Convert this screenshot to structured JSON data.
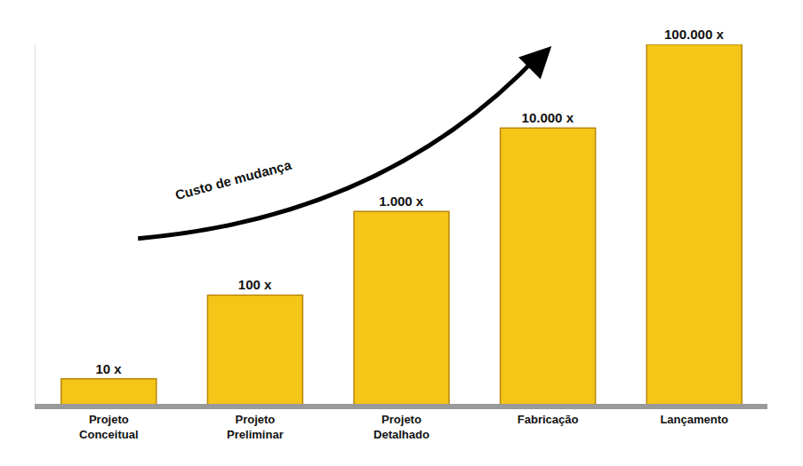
{
  "chart_data": {
    "type": "bar",
    "categories": [
      "Projeto Conceitual",
      "Projeto Preliminar",
      "Projeto Detalhado",
      "Fabricação",
      "Lançamento"
    ],
    "values": [
      10,
      100,
      1000,
      10000,
      100000
    ],
    "value_labels": [
      "10 x",
      "100 x",
      "1.000 x",
      "10.000 x",
      "100.000 x"
    ],
    "data_labels": true,
    "log": "y",
    "ylim": [
      5,
      100000
    ],
    "yticks": [],
    "tick_labels": "x",
    "grid": false,
    "color": "#f5c518",
    "annotations": [
      {
        "text": "Custo de mudança"
      }
    ]
  }
}
